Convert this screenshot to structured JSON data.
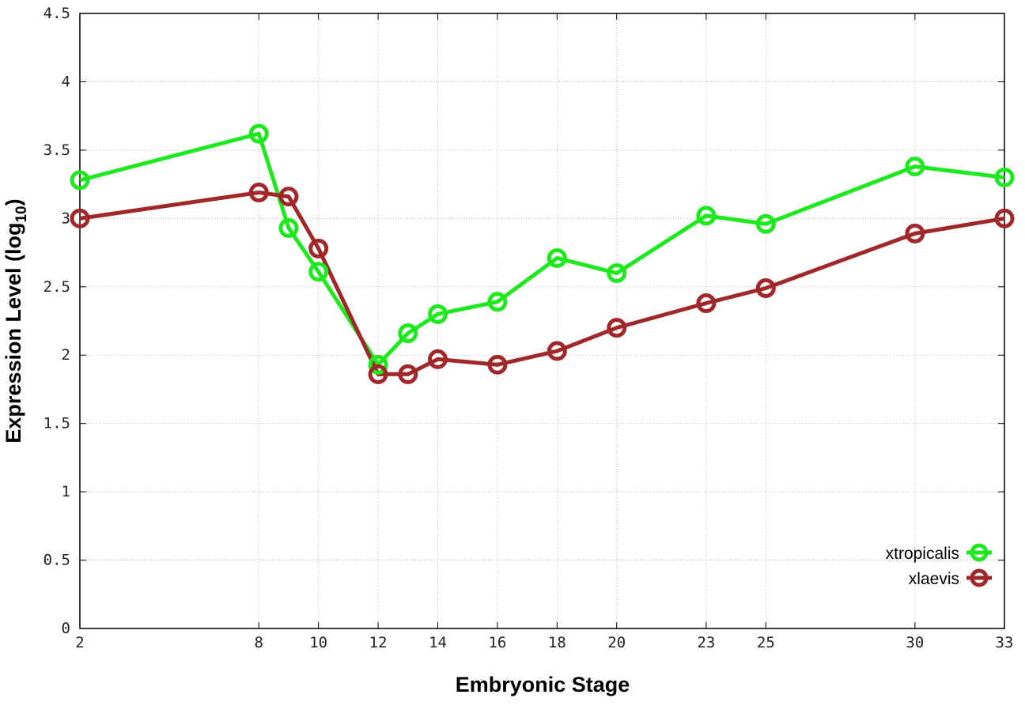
{
  "chart_data": {
    "type": "line",
    "xlabel": "Embryonic Stage",
    "ylabel": "Expression Level (log",
    "ylabel_sub": "10",
    "ylabel_end": ")",
    "x": [
      2,
      8,
      9,
      10,
      12,
      13,
      14,
      16,
      18,
      20,
      23,
      25,
      30,
      33
    ],
    "xticks": [
      "2",
      "8",
      "10",
      "12",
      "14",
      "16",
      "18",
      "20",
      "23",
      "25",
      "30",
      "33"
    ],
    "yticks": [
      "0",
      "0.5",
      "1",
      "1.5",
      "2",
      "2.5",
      "3",
      "3.5",
      "4",
      "4.5"
    ],
    "xlim": [
      2,
      33
    ],
    "ylim": [
      0,
      4.5
    ],
    "grid": true,
    "legend_position": "bottom-right",
    "series": [
      {
        "name": "xtropicalis",
        "color": "#1ee81e",
        "values": [
          3.28,
          3.62,
          2.93,
          2.61,
          1.93,
          2.16,
          2.3,
          2.39,
          2.71,
          2.6,
          3.02,
          2.96,
          3.38,
          3.3
        ]
      },
      {
        "name": "xlaevis",
        "color": "#a0282a",
        "values": [
          3.0,
          3.19,
          3.16,
          2.78,
          1.86,
          1.86,
          1.97,
          1.93,
          2.03,
          2.2,
          2.38,
          2.49,
          2.89,
          3.0
        ]
      }
    ]
  }
}
